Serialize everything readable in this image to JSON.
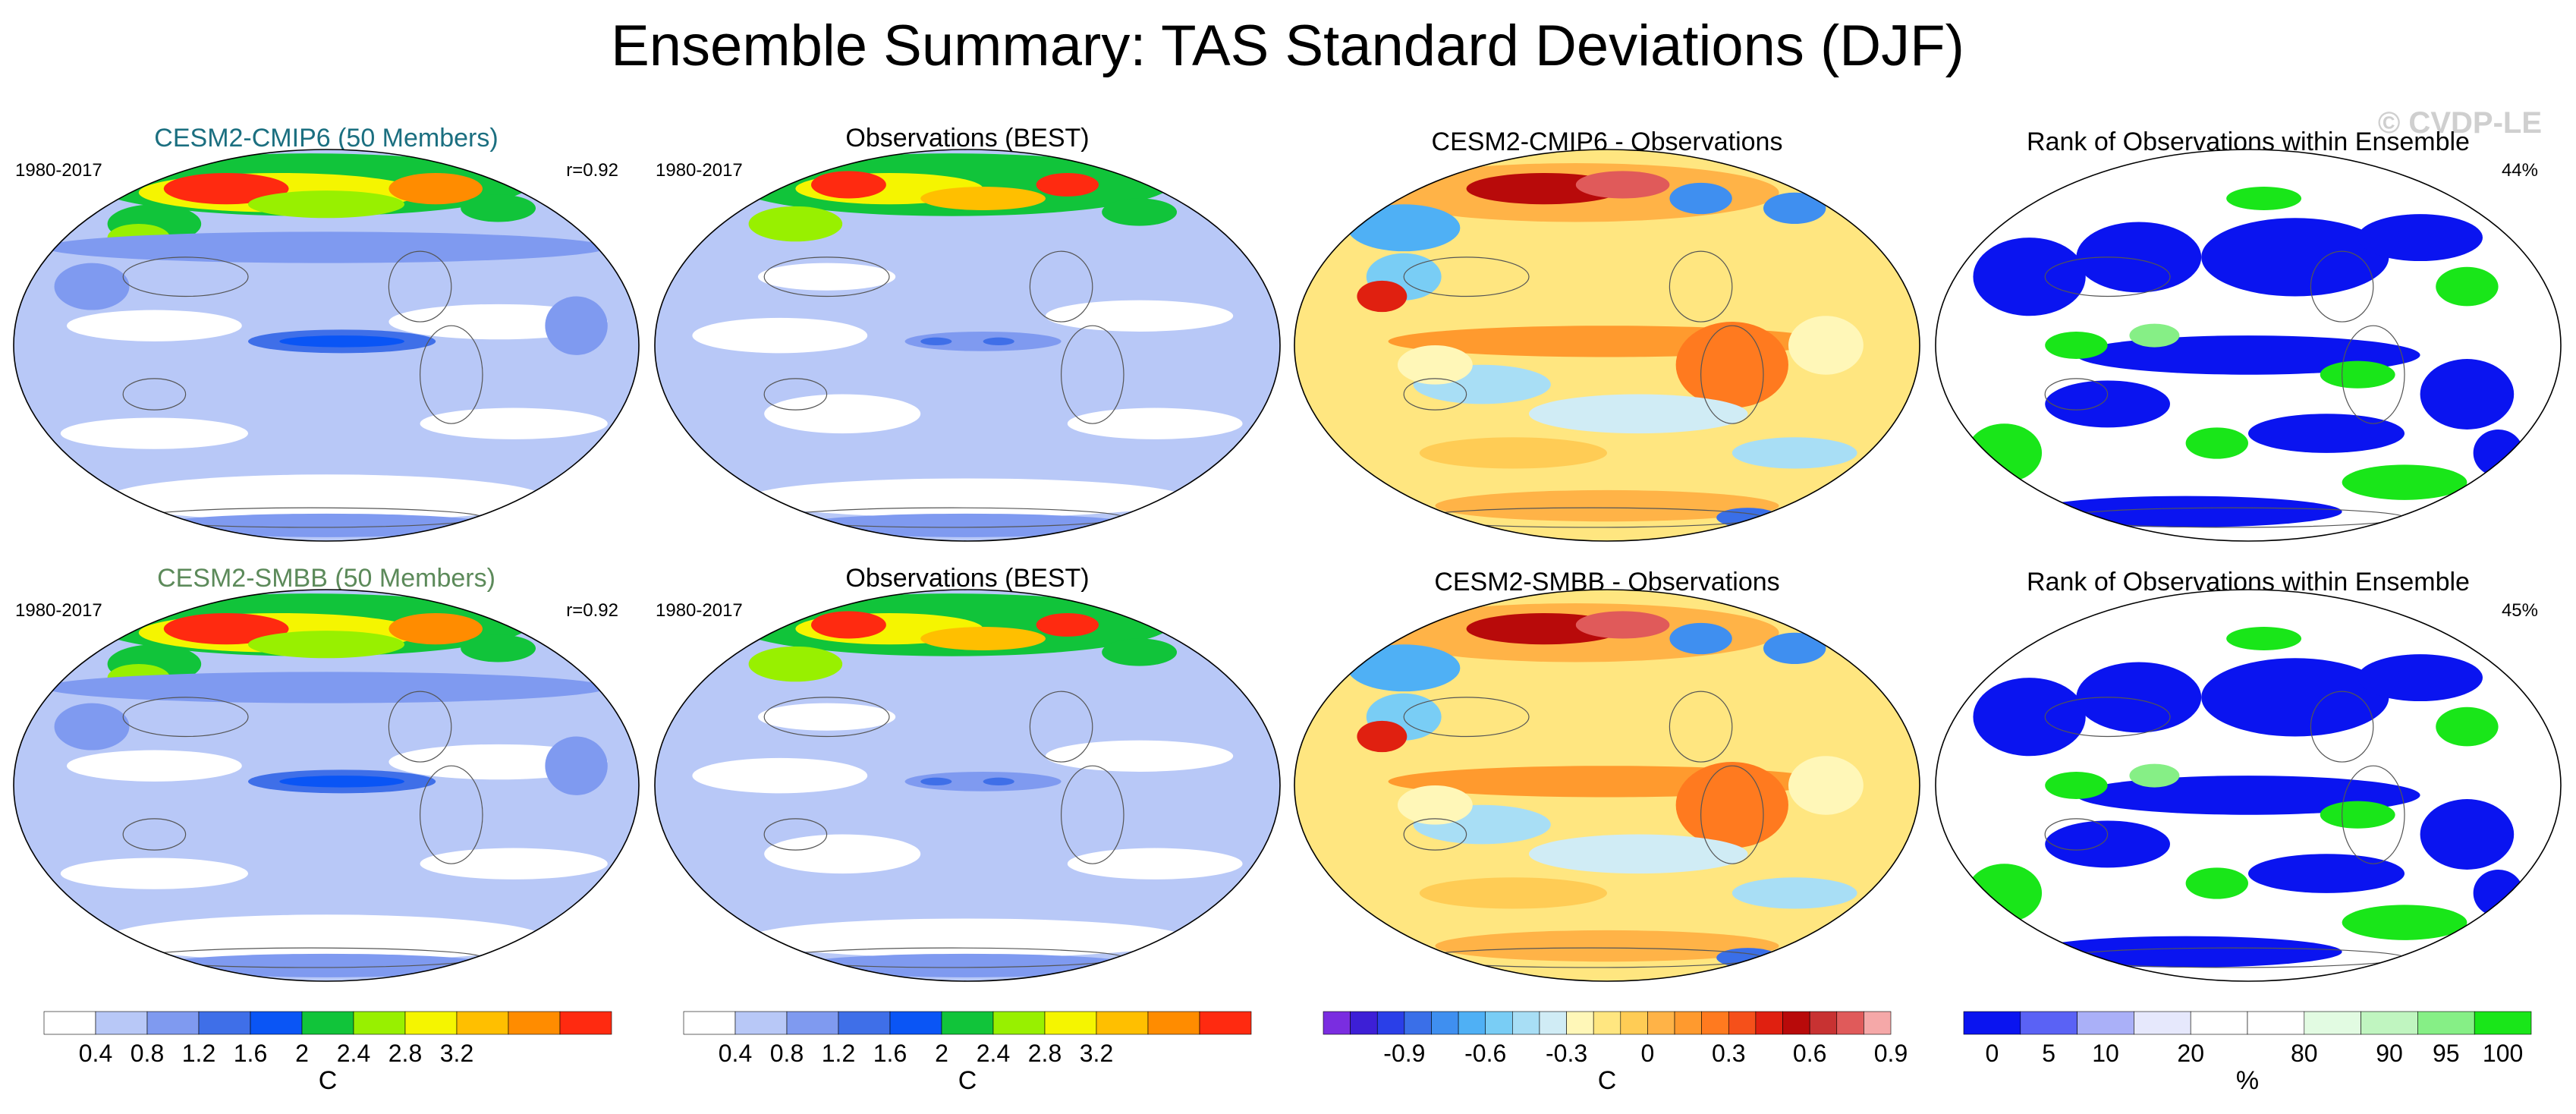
{
  "figure": {
    "title": "Ensemble Summary: TAS Standard Deviations (DJF)",
    "watermark": "© CVDP-LE"
  },
  "rows": [
    {
      "panels": [
        {
          "kind": "model",
          "title": "CESM2-CMIP6 (50 Members)",
          "title_color": "#1b6f80",
          "left_label": "1980-2017",
          "right_label": "r=0.92"
        },
        {
          "kind": "obs",
          "title": "Observations (BEST)",
          "title_color": "#000000",
          "left_label": "1980-2017",
          "right_label": ""
        },
        {
          "kind": "diff",
          "title": "CESM2-CMIP6 - Observations",
          "title_color": "#000000",
          "left_label": "",
          "right_label": ""
        },
        {
          "kind": "rank",
          "title": "Rank of Observations within Ensemble",
          "title_color": "#000000",
          "left_label": "",
          "right_label": "44%"
        }
      ]
    },
    {
      "panels": [
        {
          "kind": "model",
          "title": "CESM2-SMBB (50 Members)",
          "title_color": "#5c8a5a",
          "left_label": "1980-2017",
          "right_label": "r=0.92"
        },
        {
          "kind": "obs",
          "title": "Observations (BEST)",
          "title_color": "#000000",
          "left_label": "1980-2017",
          "right_label": ""
        },
        {
          "kind": "diff",
          "title": "CESM2-SMBB - Observations",
          "title_color": "#000000",
          "left_label": "",
          "right_label": ""
        },
        {
          "kind": "rank",
          "title": "Rank of Observations within Ensemble",
          "title_color": "#000000",
          "left_label": "",
          "right_label": "45%"
        }
      ]
    }
  ],
  "colorbars": [
    {
      "kind": "sd",
      "unit": "C",
      "colors": [
        "#ffffff",
        "#b8c8f7",
        "#7f9af0",
        "#3f6fe8",
        "#0a55f5",
        "#11c43a",
        "#98f000",
        "#f5f500",
        "#ffbf00",
        "#ff8c00",
        "#ff2a10"
      ],
      "tick_labels": [
        "0.4",
        "0.8",
        "1.2",
        "1.6",
        "2",
        "2.4",
        "2.8",
        "3.2"
      ]
    },
    {
      "kind": "sd",
      "unit": "C",
      "colors": [
        "#ffffff",
        "#b8c8f7",
        "#7f9af0",
        "#3f6fe8",
        "#0a55f5",
        "#11c43a",
        "#98f000",
        "#f5f500",
        "#ffbf00",
        "#ff8c00",
        "#ff2a10"
      ],
      "tick_labels": [
        "0.4",
        "0.8",
        "1.2",
        "1.6",
        "2",
        "2.4",
        "2.8",
        "3.2"
      ]
    },
    {
      "kind": "diff",
      "unit": "C",
      "colors": [
        "#7a2de0",
        "#3d1fd6",
        "#2a3fe8",
        "#3a6fe8",
        "#3f8ff0",
        "#4fb0f5",
        "#79cdf5",
        "#a8def5",
        "#d0ecf5",
        "#fff7b8",
        "#ffe680",
        "#ffcc55",
        "#ffb347",
        "#ff9a2e",
        "#ff7a1f",
        "#f5501a",
        "#e02010",
        "#b80a0a",
        "#c83232",
        "#e05a5a",
        "#f5a8a8"
      ],
      "tick_labels": [
        "-0.9",
        "-0.6",
        "-0.3",
        "0",
        "0.3",
        "0.6",
        "0.9"
      ]
    },
    {
      "kind": "rank",
      "unit": "%",
      "colors": [
        "#0a14f0",
        "#5a62f5",
        "#aab0f8",
        "#e6e8fc",
        "#ffffff",
        "#ffffff",
        "#e2fbe2",
        "#c0f5c0",
        "#86ef86",
        "#19e619"
      ],
      "tick_labels": [
        "0",
        "5",
        "10",
        "20",
        "80",
        "90",
        "95",
        "100"
      ]
    }
  ],
  "chart_data": [
    {
      "type": "heatmap",
      "title": "CESM2-CMIP6 (50 Members)",
      "period": "1980-2017",
      "pattern_correlation": 0.92,
      "variable": "TAS standard deviation (DJF)",
      "units": "C",
      "levels": [
        0.4,
        0.8,
        1.2,
        1.6,
        2.0,
        2.4,
        2.8,
        3.2
      ]
    },
    {
      "type": "heatmap",
      "title": "Observations (BEST)",
      "period": "1980-2017",
      "variable": "TAS standard deviation (DJF)",
      "units": "C",
      "levels": [
        0.4,
        0.8,
        1.2,
        1.6,
        2.0,
        2.4,
        2.8,
        3.2
      ]
    },
    {
      "type": "heatmap",
      "title": "CESM2-CMIP6 - Observations",
      "units": "C",
      "levels": [
        -0.9,
        -0.6,
        -0.3,
        0,
        0.3,
        0.6,
        0.9
      ]
    },
    {
      "type": "heatmap",
      "title": "Rank of Observations within Ensemble",
      "summary": "44%",
      "units": "%",
      "levels": [
        0,
        5,
        10,
        20,
        80,
        90,
        95,
        100
      ]
    },
    {
      "type": "heatmap",
      "title": "CESM2-SMBB (50 Members)",
      "period": "1980-2017",
      "pattern_correlation": 0.92,
      "variable": "TAS standard deviation (DJF)",
      "units": "C",
      "levels": [
        0.4,
        0.8,
        1.2,
        1.6,
        2.0,
        2.4,
        2.8,
        3.2
      ]
    },
    {
      "type": "heatmap",
      "title": "Observations (BEST)",
      "period": "1980-2017",
      "variable": "TAS standard deviation (DJF)",
      "units": "C",
      "levels": [
        0.4,
        0.8,
        1.2,
        1.6,
        2.0,
        2.4,
        2.8,
        3.2
      ]
    },
    {
      "type": "heatmap",
      "title": "CESM2-SMBB - Observations",
      "units": "C",
      "levels": [
        -0.9,
        -0.6,
        -0.3,
        0,
        0.3,
        0.6,
        0.9
      ]
    },
    {
      "type": "heatmap",
      "title": "Rank of Observations within Ensemble",
      "summary": "45%",
      "units": "%",
      "levels": [
        0,
        5,
        10,
        20,
        80,
        90,
        95,
        100
      ]
    }
  ]
}
